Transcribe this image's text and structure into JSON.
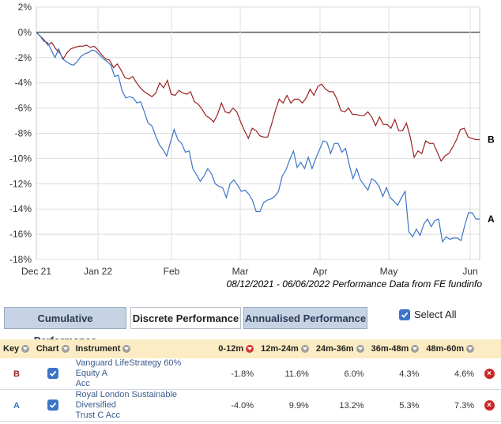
{
  "chart_data": {
    "type": "line",
    "ylim": [
      -18,
      2
    ],
    "yticks": [
      "2%",
      "0%",
      "-2%",
      "-4%",
      "-6%",
      "-8%",
      "-10%",
      "-12%",
      "-14%",
      "-16%",
      "-18%"
    ],
    "xticks": [
      "Dec 21",
      "Jan 22",
      "Feb",
      "Mar",
      "Apr",
      "May",
      "Jun"
    ],
    "grid": true,
    "series": [
      {
        "name": "B",
        "color": "#9a2222",
        "values": [
          0.0,
          -0.3,
          -0.6,
          -1.0,
          -0.8,
          -1.3,
          -1.6,
          -2.1,
          -1.6,
          -1.3,
          -1.2,
          -1.1,
          -1.1,
          -1.0,
          -1.2,
          -1.1,
          -1.4,
          -1.8,
          -2.1,
          -2.2,
          -2.8,
          -2.5,
          -3.0,
          -3.6,
          -3.7,
          -3.5,
          -4.0,
          -4.4,
          -4.7,
          -4.9,
          -5.1,
          -4.8,
          -4.0,
          -4.4,
          -3.8,
          -4.9,
          -5.0,
          -4.6,
          -4.8,
          -4.9,
          -4.7,
          -5.5,
          -5.7,
          -6.1,
          -6.6,
          -6.8,
          -7.1,
          -6.5,
          -5.6,
          -6.3,
          -6.4,
          -6.0,
          -6.3,
          -7.1,
          -7.8,
          -8.4,
          -7.6,
          -7.8,
          -8.2,
          -8.3,
          -8.3,
          -7.3,
          -6.2,
          -5.3,
          -5.6,
          -5.0,
          -5.6,
          -5.3,
          -5.3,
          -5.6,
          -5.2,
          -4.5,
          -5.0,
          -4.3,
          -4.1,
          -4.5,
          -4.7,
          -4.7,
          -5.3,
          -6.2,
          -6.3,
          -6.0,
          -6.5,
          -6.5,
          -6.6,
          -6.6,
          -6.3,
          -6.7,
          -7.4,
          -6.7,
          -7.3,
          -7.3,
          -7.6,
          -6.9,
          -7.8,
          -7.8,
          -7.2,
          -8.3,
          -9.9,
          -9.4,
          -9.6,
          -8.6,
          -8.8,
          -8.8,
          -9.5,
          -10.2,
          -9.8,
          -9.6,
          -9.1,
          -8.5,
          -7.7,
          -7.6,
          -8.3,
          -8.4,
          -8.5,
          -8.5
        ],
        "end_label": "B"
      },
      {
        "name": "A",
        "color": "#3b74c8",
        "values": [
          0.0,
          -0.3,
          -0.7,
          -0.8,
          -1.4,
          -2.0,
          -1.3,
          -2.1,
          -2.3,
          -2.5,
          -2.6,
          -2.3,
          -1.9,
          -1.7,
          -1.6,
          -1.4,
          -1.5,
          -1.8,
          -2.1,
          -2.3,
          -2.6,
          -3.5,
          -3.4,
          -4.6,
          -5.2,
          -5.1,
          -5.2,
          -5.6,
          -5.5,
          -6.3,
          -7.2,
          -7.4,
          -8.2,
          -8.9,
          -9.3,
          -9.8,
          -8.7,
          -7.7,
          -8.5,
          -8.8,
          -9.5,
          -9.4,
          -10.8,
          -11.3,
          -11.8,
          -11.4,
          -10.8,
          -11.2,
          -12.0,
          -12.2,
          -12.3,
          -13.1,
          -12.0,
          -11.7,
          -12.1,
          -12.6,
          -12.5,
          -12.8,
          -13.3,
          -14.2,
          -14.2,
          -13.5,
          -13.3,
          -13.2,
          -13.0,
          -12.6,
          -11.4,
          -10.9,
          -10.1,
          -9.4,
          -10.7,
          -10.3,
          -10.8,
          -9.9,
          -10.8,
          -10.0,
          -9.3,
          -8.6,
          -8.7,
          -9.6,
          -8.8,
          -8.8,
          -9.5,
          -9.2,
          -10.5,
          -11.6,
          -10.8,
          -11.7,
          -12.1,
          -12.5,
          -11.6,
          -11.8,
          -12.2,
          -13.0,
          -12.3,
          -13.1,
          -13.4,
          -13.7,
          -13.1,
          -12.6,
          -15.8,
          -16.2,
          -15.6,
          -16.1,
          -15.2,
          -14.8,
          -15.4,
          -14.9,
          -14.8,
          -16.6,
          -16.2,
          -16.4,
          -16.3,
          -16.3,
          -16.5,
          -15.3,
          -14.3,
          -14.3,
          -14.8,
          -14.8
        ],
        "end_label": "A"
      }
    ]
  },
  "caption": "08/12/2021 - 06/06/2022 Performance Data from FE fundinfo",
  "tabs": [
    {
      "label": "Cumulative Performance",
      "active": false
    },
    {
      "label": "Discrete Performance",
      "active": true
    },
    {
      "label": "Annualised Performance",
      "active": false
    }
  ],
  "select_all": {
    "label": "Select All",
    "checked": true
  },
  "table": {
    "headers": {
      "key": "Key",
      "chart": "Chart",
      "instrument": "Instrument",
      "c1": "0-12m",
      "c2": "12m-24m",
      "c3": "24m-36m",
      "c4": "36m-48m",
      "c5": "48m-60m"
    },
    "rows": [
      {
        "key": "B",
        "instrument_line1": "Vanguard LifeStrategy 60% Equity A",
        "instrument_line2": "Acc",
        "c1": "-1.8%",
        "c2": "11.6%",
        "c3": "6.0%",
        "c4": "4.3%",
        "c5": "4.6%"
      },
      {
        "key": "A",
        "instrument_line1": "Royal London Sustainable Diversified",
        "instrument_line2": "Trust C Acc",
        "c1": "-4.0%",
        "c2": "9.9%",
        "c3": "13.2%",
        "c4": "5.3%",
        "c5": "7.3%"
      }
    ]
  }
}
